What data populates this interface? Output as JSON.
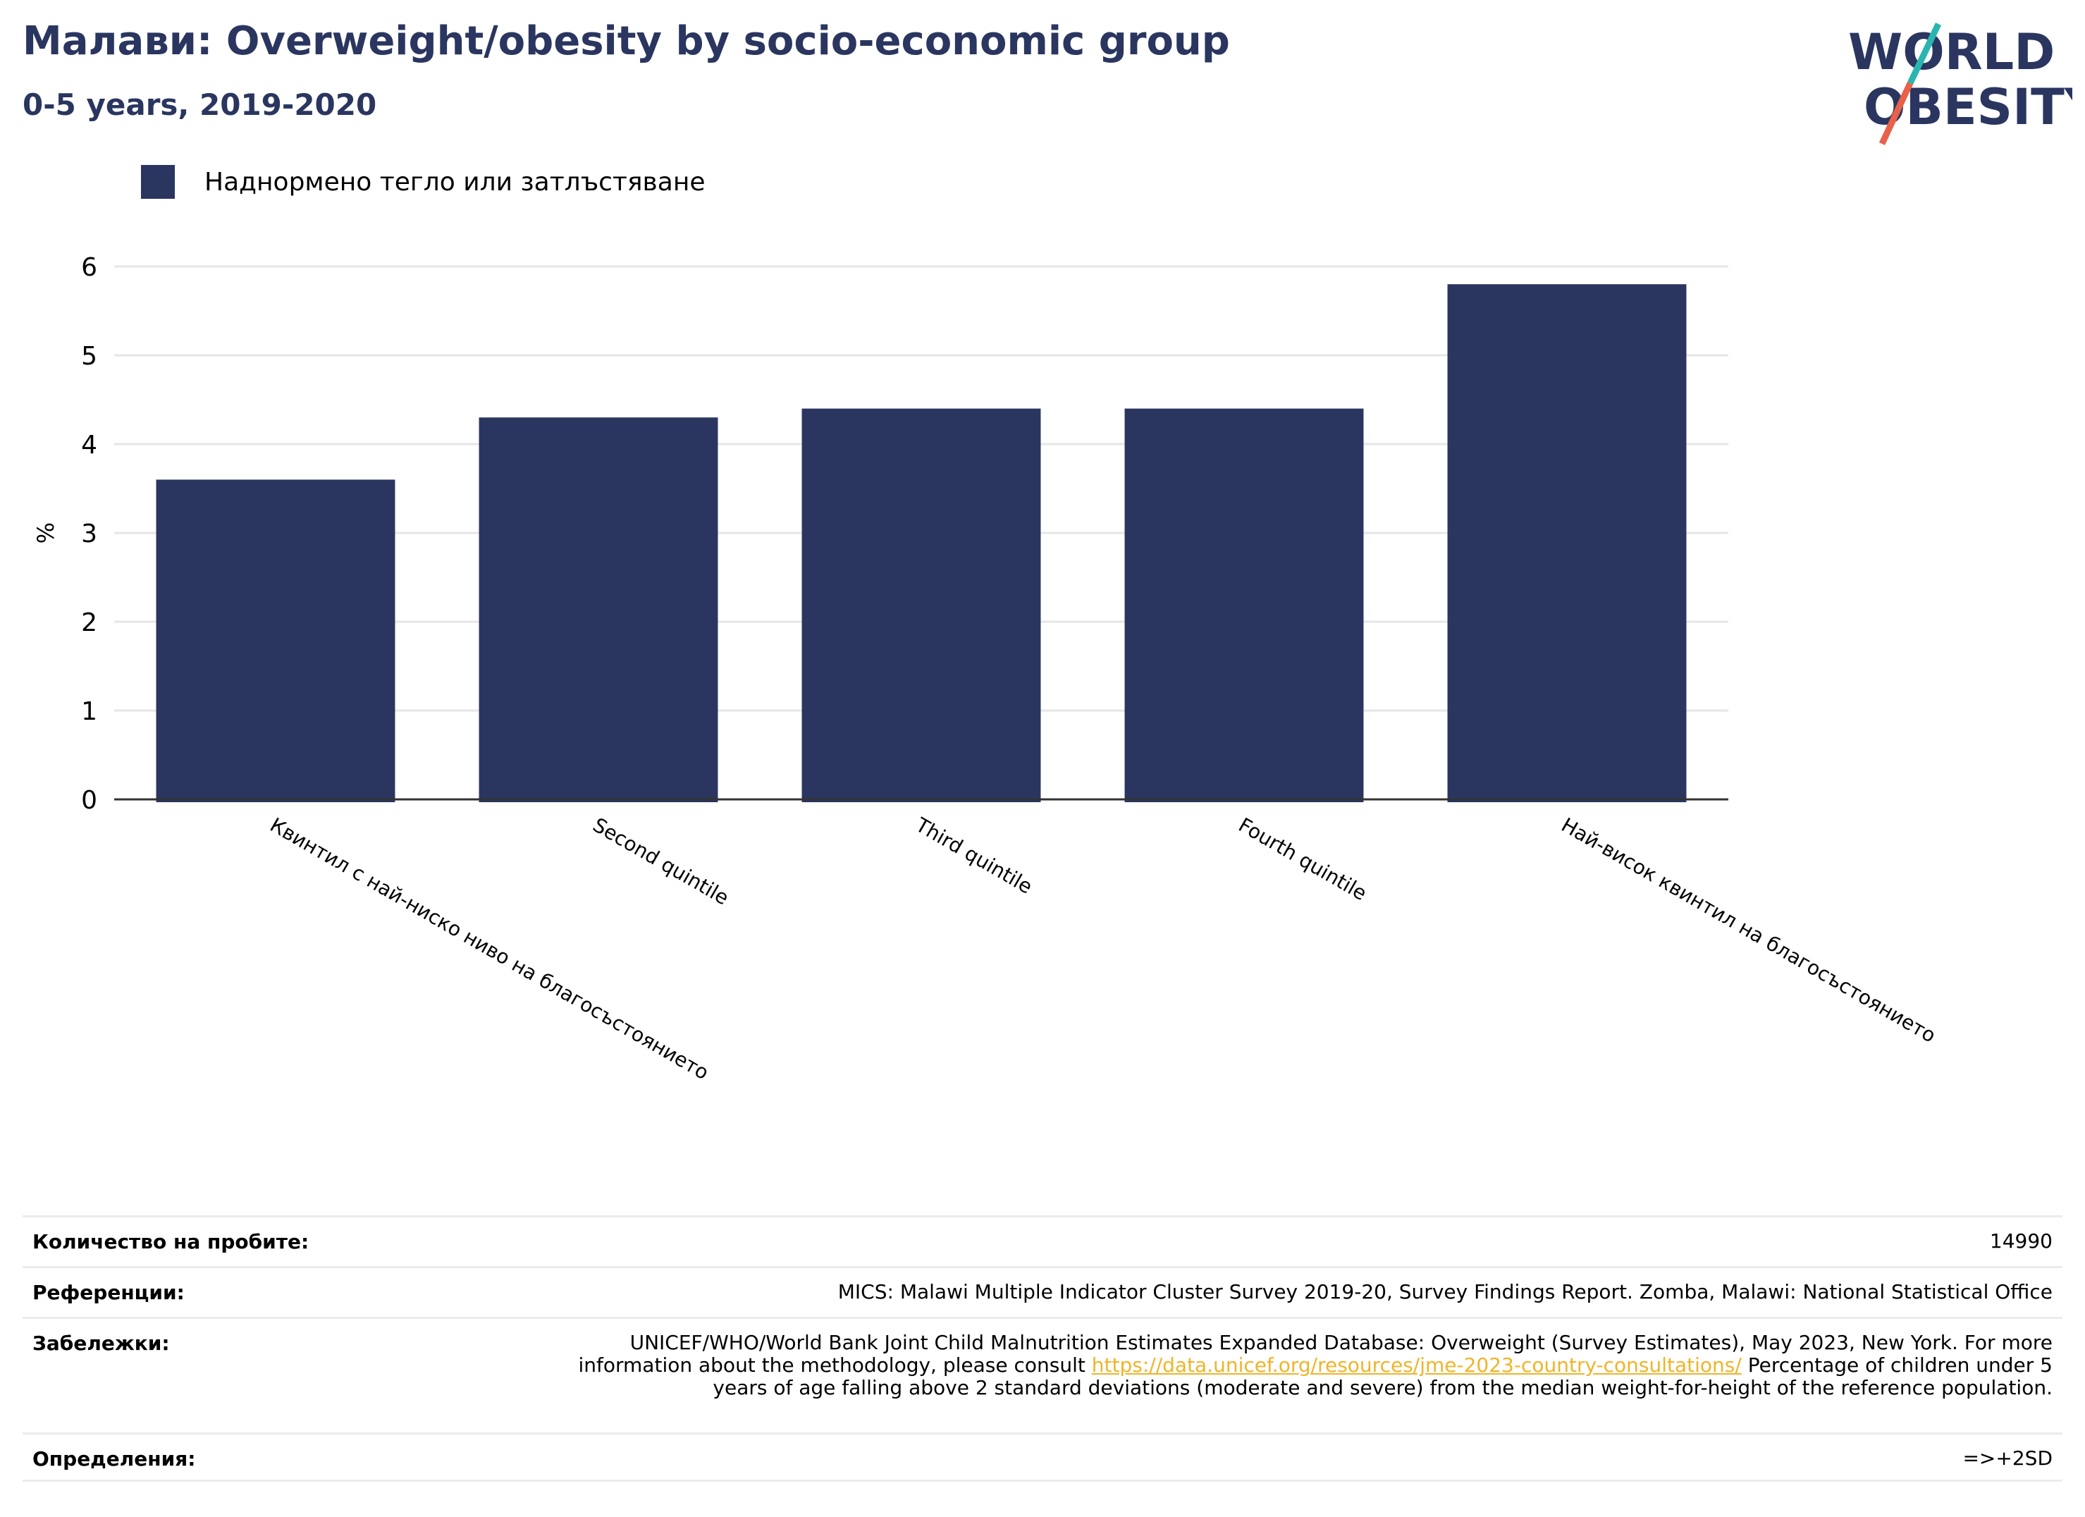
{
  "header": {
    "title": "Малави: Overweight/obesity by socio-economic group",
    "subtitle": "0-5 years, 2019-2020"
  },
  "logo": {
    "line1": "WORLD",
    "line2": "OBESITY",
    "colors": {
      "text": "#2a365f",
      "teal": "#2ab5b0",
      "coral": "#e8614b"
    }
  },
  "legend": {
    "label": "Наднормено тегло или затлъстяване",
    "color": "#2a365f"
  },
  "chart_data": {
    "type": "bar",
    "categories": [
      "Квинтил с най-ниско ниво на благосъстоянието",
      "Second quintile",
      "Third quintile",
      "Fourth quintile",
      "Най-висок квинтил на благосъстоянието"
    ],
    "series": [
      {
        "name": "Наднормено тегло или затлъстяване",
        "values": [
          3.6,
          4.3,
          4.4,
          4.4,
          5.8
        ],
        "color": "#2a365f"
      }
    ],
    "ylabel": "%",
    "ylim": [
      0,
      6
    ],
    "yticks": [
      0,
      1,
      2,
      3,
      4,
      5,
      6
    ],
    "grid": true,
    "legend_position": "top-left"
  },
  "info": {
    "sample_label": "Количество на пробите:",
    "sample_value": "14990",
    "references_label": "Референции:",
    "references_value": "MICS: Malawi Multiple Indicator Cluster Survey 2019-20, Survey Findings Report. Zomba, Malawi: National Statistical Office",
    "notes_label": "Забележки:",
    "notes_pre": "UNICEF/WHO/World Bank Joint Child Malnutrition Estimates Expanded Database: Overweight (Survey Estimates), May 2023, New York. For more information about the methodology, please consult",
    "notes_link": "https://data.unicef.org/resources/jme-2023-country-consultations/",
    "notes_post": "Percentage of children under 5 years of age falling above 2 standard deviations (moderate and severe) from the median weight-for-height of the reference population.",
    "definitions_label": "Определения:",
    "definitions_value": "=>+2SD"
  }
}
